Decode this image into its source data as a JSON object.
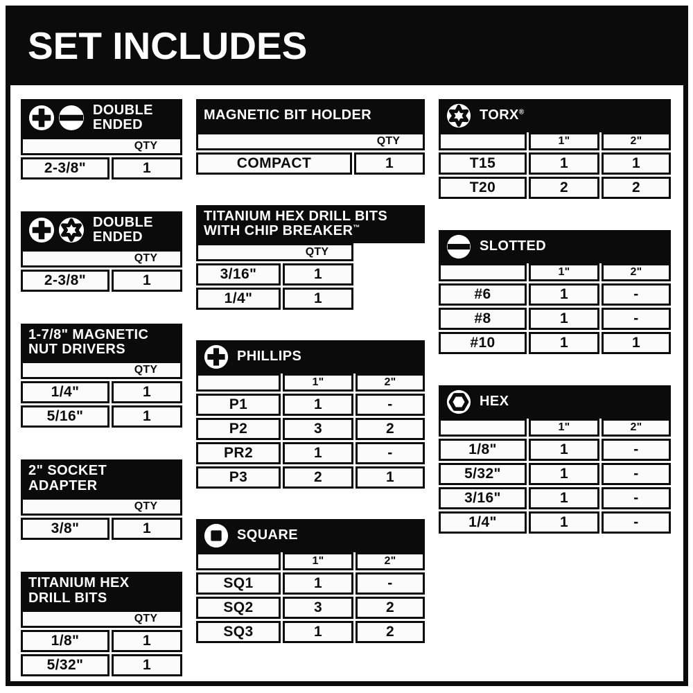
{
  "title": "SET INCLUDES",
  "colors": {
    "frame_black": "#0b0b0b",
    "background": "#ffffff",
    "cell_background": "#fcfbfc",
    "header_text": "#ffffff"
  },
  "columns": [
    {
      "tables": [
        {
          "name": "double-ended-phillips-slotted",
          "format": "qty",
          "icons": [
            "phillips",
            "slotted"
          ],
          "title_lines": [
            "DOUBLE",
            "ENDED"
          ],
          "size_headers": [
            "QTY"
          ],
          "rows": [
            {
              "label": "2-3/8\"",
              "values": [
                "1"
              ]
            }
          ]
        },
        {
          "name": "double-ended-phillips-torx",
          "format": "qty",
          "icons": [
            "phillips",
            "torx"
          ],
          "title_lines": [
            "DOUBLE",
            "ENDED"
          ],
          "size_headers": [
            "QTY"
          ],
          "rows": [
            {
              "label": "2-3/8\"",
              "values": [
                "1"
              ]
            }
          ]
        },
        {
          "name": "magnetic-nut-drivers",
          "format": "qty",
          "icons": [],
          "title_lines": [
            "1-7/8\" MAGNETIC",
            "NUT DRIVERS"
          ],
          "size_headers": [
            "QTY"
          ],
          "rows": [
            {
              "label": "1/4\"",
              "values": [
                "1"
              ]
            },
            {
              "label": "5/16\"",
              "values": [
                "1"
              ]
            }
          ]
        },
        {
          "name": "socket-adapter",
          "format": "qty",
          "icons": [],
          "title_lines": [
            "2\" SOCKET",
            "ADAPTER"
          ],
          "size_headers": [
            "QTY"
          ],
          "rows": [
            {
              "label": "3/8\"",
              "values": [
                "1"
              ]
            }
          ]
        },
        {
          "name": "titanium-hex-drill-bits",
          "format": "qty",
          "icons": [],
          "title_lines": [
            "TITANIUM HEX",
            "DRILL BITS"
          ],
          "size_headers": [
            "QTY"
          ],
          "rows": [
            {
              "label": "1/8\"",
              "values": [
                "1"
              ]
            },
            {
              "label": "5/32\"",
              "values": [
                "1"
              ]
            }
          ]
        }
      ]
    },
    {
      "tables": [
        {
          "name": "magnetic-bit-holder",
          "format": "qty",
          "icons": [],
          "title_lines": [
            "MAGNETIC BIT HOLDER"
          ],
          "size_headers": [
            "QTY"
          ],
          "rows": [
            {
              "label": "COMPACT",
              "values": [
                "1"
              ]
            }
          ]
        },
        {
          "name": "titanium-hex-drill-bits-chip-breaker",
          "format": "qty",
          "variant": "body-narrow",
          "icons": [],
          "title_lines": [
            "TITANIUM HEX DRILL BITS",
            "WITH CHIP BREAKER"
          ],
          "title_suffix": "™",
          "size_headers": [
            "QTY"
          ],
          "rows": [
            {
              "label": "3/16\"",
              "values": [
                "1"
              ]
            },
            {
              "label": "1/4\"",
              "values": [
                "1"
              ]
            }
          ]
        },
        {
          "name": "phillips",
          "format": "sizes",
          "icons": [
            "phillips"
          ],
          "title_lines": [
            "PHILLIPS"
          ],
          "size_headers": [
            "1\"",
            "2\""
          ],
          "rows": [
            {
              "label": "P1",
              "values": [
                "1",
                "-"
              ]
            },
            {
              "label": "P2",
              "values": [
                "3",
                "2"
              ]
            },
            {
              "label": "PR2",
              "values": [
                "1",
                "-"
              ]
            },
            {
              "label": "P3",
              "values": [
                "2",
                "1"
              ]
            }
          ]
        },
        {
          "name": "square",
          "format": "sizes",
          "icons": [
            "square"
          ],
          "title_lines": [
            "SQUARE"
          ],
          "size_headers": [
            "1\"",
            "2\""
          ],
          "rows": [
            {
              "label": "SQ1",
              "values": [
                "1",
                "-"
              ]
            },
            {
              "label": "SQ2",
              "values": [
                "3",
                "2"
              ]
            },
            {
              "label": "SQ3",
              "values": [
                "1",
                "2"
              ]
            }
          ]
        }
      ]
    },
    {
      "tables": [
        {
          "name": "torx",
          "format": "sizes",
          "icons": [
            "torx"
          ],
          "title_lines": [
            "TORX"
          ],
          "title_suffix": "®",
          "size_headers": [
            "1\"",
            "2\""
          ],
          "rows": [
            {
              "label": "T15",
              "values": [
                "1",
                "1"
              ]
            },
            {
              "label": "T20",
              "values": [
                "2",
                "2"
              ]
            }
          ]
        },
        {
          "name": "slotted",
          "format": "sizes",
          "icons": [
            "slotted"
          ],
          "title_lines": [
            "SLOTTED"
          ],
          "size_headers": [
            "1\"",
            "2\""
          ],
          "rows": [
            {
              "label": "#6",
              "values": [
                "1",
                "-"
              ]
            },
            {
              "label": "#8",
              "values": [
                "1",
                "-"
              ]
            },
            {
              "label": "#10",
              "values": [
                "1",
                "1"
              ]
            }
          ]
        },
        {
          "name": "hex",
          "format": "sizes",
          "icons": [
            "hex"
          ],
          "title_lines": [
            "HEX"
          ],
          "size_headers": [
            "1\"",
            "2\""
          ],
          "rows": [
            {
              "label": "1/8\"",
              "values": [
                "1",
                "-"
              ]
            },
            {
              "label": "5/32\"",
              "values": [
                "1",
                "-"
              ]
            },
            {
              "label": "3/16\"",
              "values": [
                "1",
                "-"
              ]
            },
            {
              "label": "1/4\"",
              "values": [
                "1",
                "-"
              ]
            }
          ]
        }
      ]
    }
  ]
}
